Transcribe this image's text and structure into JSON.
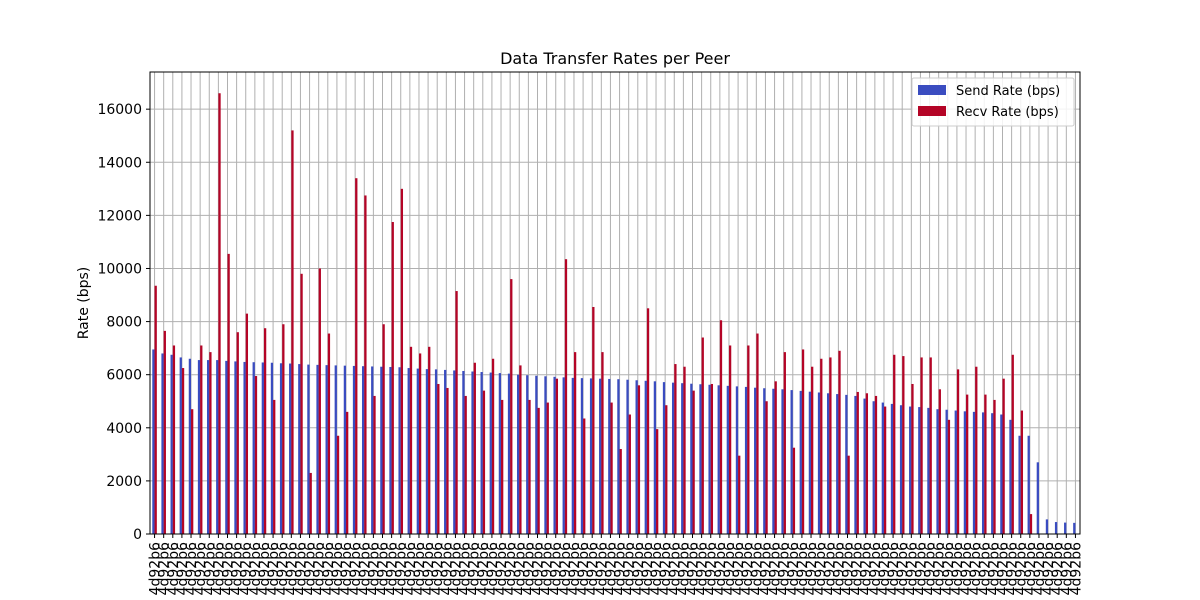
{
  "chart_data": {
    "type": "bar",
    "title": "Data Transfer Rates per Peer",
    "xlabel": "",
    "ylabel": "Rate (bps)",
    "ylim": [
      0,
      17400
    ],
    "yticks": [
      0,
      2000,
      4000,
      6000,
      8000,
      10000,
      12000,
      14000,
      16000
    ],
    "grid": true,
    "legend_position": "top-right",
    "category_label": "4d92b6",
    "series": [
      {
        "name": "Send Rate (bps)",
        "color": "#3a4cc0",
        "values": [
          6950,
          6800,
          6750,
          6650,
          6600,
          6550,
          6550,
          6550,
          6520,
          6500,
          6480,
          6470,
          6460,
          6450,
          6430,
          6420,
          6400,
          6380,
          6370,
          6360,
          6350,
          6340,
          6330,
          6320,
          6310,
          6300,
          6290,
          6280,
          6250,
          6230,
          6210,
          6200,
          6180,
          6160,
          6140,
          6120,
          6100,
          6080,
          6060,
          6040,
          6000,
          5980,
          5960,
          5940,
          5920,
          5900,
          5880,
          5870,
          5860,
          5850,
          5840,
          5830,
          5810,
          5790,
          5770,
          5750,
          5720,
          5700,
          5680,
          5660,
          5640,
          5620,
          5600,
          5580,
          5560,
          5540,
          5510,
          5490,
          5470,
          5450,
          5420,
          5390,
          5360,
          5330,
          5300,
          5270,
          5240,
          5200,
          5100,
          5000,
          4950,
          4900,
          4850,
          4800,
          4780,
          4750,
          4700,
          4680,
          4650,
          4620,
          4600,
          4580,
          4550,
          4500,
          4300,
          3700,
          3700,
          2700,
          550,
          450,
          430,
          420
        ]
      },
      {
        "name": "Recv Rate (bps)",
        "color": "#b40426",
        "values": [
          9350,
          7650,
          7100,
          6250,
          4700,
          7100,
          6850,
          16600,
          10550,
          7600,
          8300,
          5950,
          7750,
          5050,
          7900,
          15200,
          9800,
          2300,
          10000,
          7550,
          3700,
          4600,
          13400,
          12750,
          5200,
          7900,
          11750,
          13000,
          7050,
          6800,
          7050,
          5650,
          5500,
          9150,
          5200,
          6450,
          5400,
          6600,
          5050,
          9600,
          6350,
          5050,
          4750,
          4950,
          5850,
          10350,
          6850,
          4350,
          8550,
          6850,
          4950,
          3200,
          4500,
          5600,
          8500,
          3950,
          4850,
          6400,
          6300,
          5400,
          7400,
          5650,
          8050,
          7100,
          2950,
          7100,
          7550,
          5000,
          5750,
          6850,
          3250,
          6950,
          6300,
          6600,
          6650,
          6900,
          2950,
          5350,
          5300,
          5200,
          4800,
          6750,
          6700,
          5650,
          6650,
          6650,
          5450,
          4300,
          6200,
          5250,
          6300,
          5250,
          5050,
          5850,
          6750,
          4650,
          750,
          0,
          0,
          0,
          0,
          0
        ]
      }
    ]
  }
}
